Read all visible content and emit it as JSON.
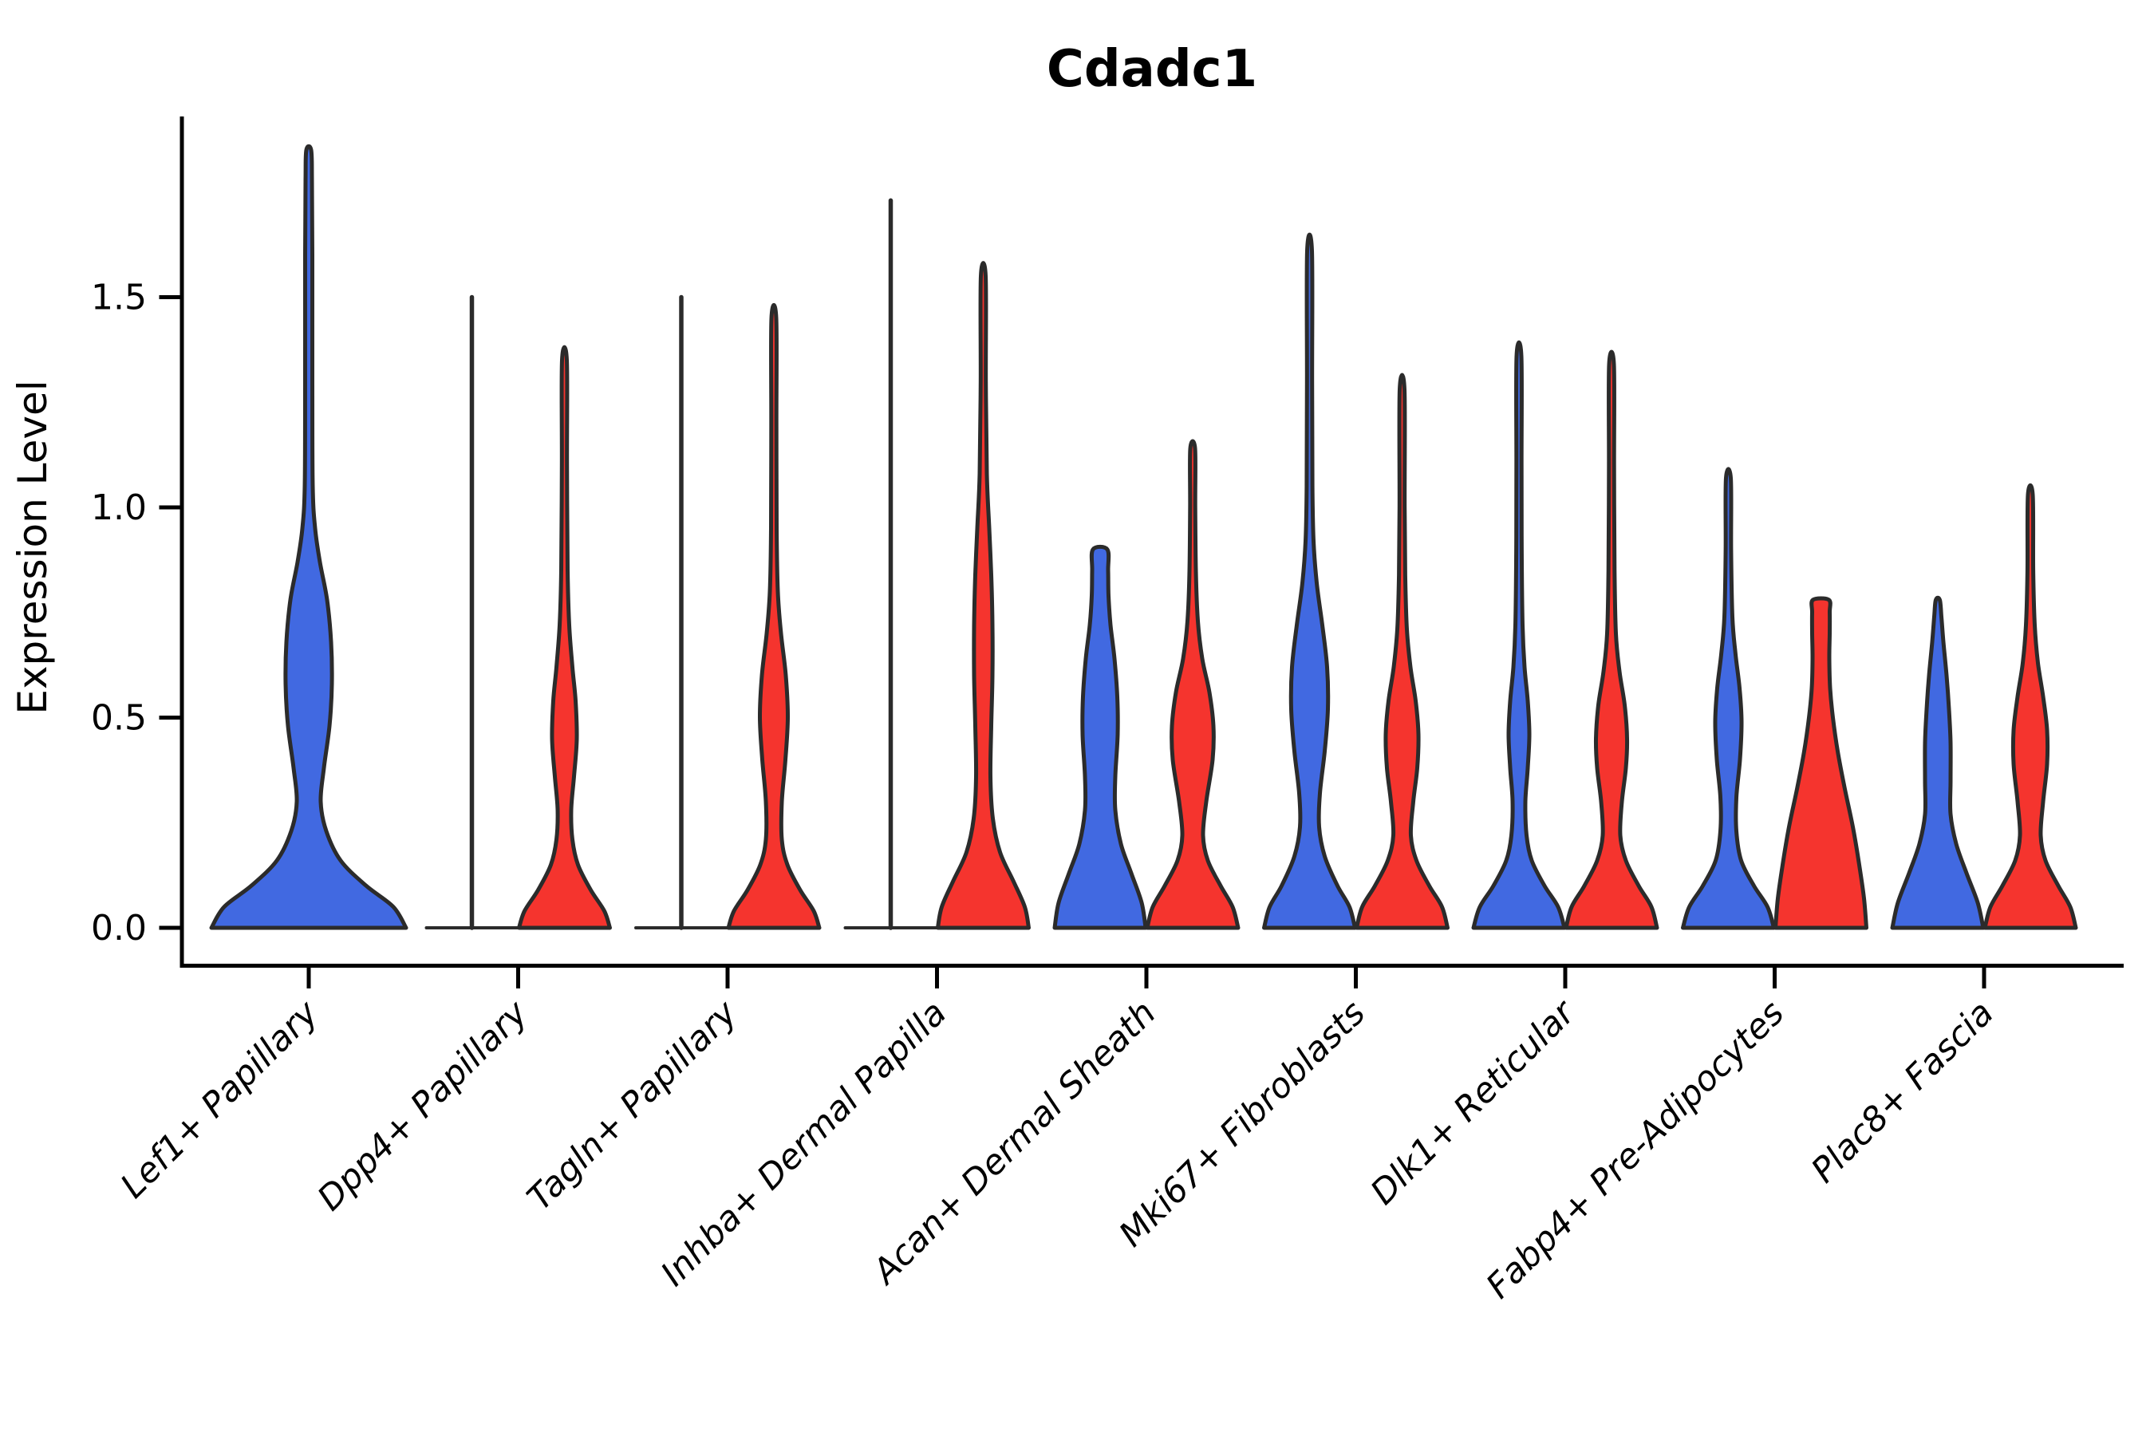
{
  "chart_data": {
    "type": "violin",
    "title": "Cdadc1",
    "ylabel": "Expression Level",
    "xlabel": "",
    "ylim": [
      -0.09,
      1.93
    ],
    "grid": false,
    "legend": "none",
    "yticks": [
      {
        "value": 0.0,
        "label": "0.0"
      },
      {
        "value": 0.5,
        "label": "0.5"
      },
      {
        "value": 1.0,
        "label": "1.0"
      },
      {
        "value": 1.5,
        "label": "1.5"
      }
    ],
    "categories": [
      "Lef1+ Papillary",
      "Dpp4+ Papillary",
      "Tagln+ Papillary",
      "Inhba+ Dermal Papilla",
      "Acan+ Dermal Sheath",
      "Mki67+ Fibroblasts",
      "Dlk1+ Reticular",
      "Fabp4+ Pre-Adipocytes",
      "Plac8+ Fascia"
    ],
    "groups": [
      {
        "id": "blue",
        "color": "#4169E1"
      },
      {
        "id": "red",
        "color": "#F5342E"
      }
    ],
    "outline_color": "#2B2B2B",
    "violins": [
      {
        "category": 0,
        "group": "blue",
        "side": "center",
        "kind": "violin",
        "top": 1.85,
        "max_halfwidth": 122,
        "profile": [
          [
            0,
            122
          ],
          [
            0.05,
            106
          ],
          [
            0.1,
            72
          ],
          [
            0.16,
            40
          ],
          [
            0.23,
            22
          ],
          [
            0.3,
            15
          ],
          [
            0.38,
            19
          ],
          [
            0.48,
            26
          ],
          [
            0.58,
            29
          ],
          [
            0.68,
            28
          ],
          [
            0.78,
            23
          ],
          [
            0.87,
            14
          ],
          [
            0.95,
            8
          ],
          [
            1.05,
            5
          ],
          [
            1.3,
            4.5
          ],
          [
            1.6,
            4.5
          ],
          [
            1.78,
            4
          ],
          [
            1.85,
            3
          ]
        ]
      },
      {
        "category": 1,
        "group": "blue",
        "side": "left",
        "kind": "line",
        "top": 1.5
      },
      {
        "category": 1,
        "group": "red",
        "side": "right",
        "kind": "violin",
        "top": 1.35,
        "max_halfwidth": 57,
        "profile": [
          [
            0,
            57
          ],
          [
            0.04,
            50
          ],
          [
            0.09,
            33
          ],
          [
            0.15,
            17
          ],
          [
            0.21,
            10
          ],
          [
            0.28,
            8.5
          ],
          [
            0.36,
            12
          ],
          [
            0.45,
            15.5
          ],
          [
            0.54,
            14
          ],
          [
            0.62,
            10
          ],
          [
            0.72,
            6
          ],
          [
            0.85,
            4
          ],
          [
            1.1,
            3.2
          ],
          [
            1.35,
            3
          ]
        ]
      },
      {
        "category": 2,
        "group": "blue",
        "side": "left",
        "kind": "line",
        "top": 1.5
      },
      {
        "category": 2,
        "group": "red",
        "side": "right",
        "kind": "violin",
        "top": 1.45,
        "max_halfwidth": 57,
        "profile": [
          [
            0,
            57
          ],
          [
            0.04,
            50
          ],
          [
            0.09,
            33
          ],
          [
            0.15,
            17
          ],
          [
            0.21,
            10
          ],
          [
            0.3,
            10
          ],
          [
            0.4,
            14.5
          ],
          [
            0.5,
            17.5
          ],
          [
            0.6,
            15
          ],
          [
            0.7,
            9
          ],
          [
            0.8,
            5
          ],
          [
            0.95,
            3.5
          ],
          [
            1.2,
            3.2
          ],
          [
            1.45,
            3
          ]
        ]
      },
      {
        "category": 3,
        "group": "blue",
        "side": "left",
        "kind": "line",
        "top": 1.73
      },
      {
        "category": 3,
        "group": "red",
        "side": "right",
        "kind": "violin",
        "top": 1.55,
        "max_halfwidth": 57,
        "profile": [
          [
            0,
            57
          ],
          [
            0.05,
            52
          ],
          [
            0.11,
            38
          ],
          [
            0.18,
            21
          ],
          [
            0.26,
            12
          ],
          [
            0.36,
            9
          ],
          [
            0.48,
            10
          ],
          [
            0.6,
            11.5
          ],
          [
            0.72,
            11.5
          ],
          [
            0.84,
            10
          ],
          [
            0.95,
            7.5
          ],
          [
            1.08,
            4.5
          ],
          [
            1.3,
            3.2
          ],
          [
            1.55,
            3
          ]
        ]
      },
      {
        "category": 4,
        "group": "blue",
        "side": "left",
        "kind": "violin",
        "top": 0.9,
        "max_halfwidth": 57,
        "profile": [
          [
            0,
            57
          ],
          [
            0.06,
            52
          ],
          [
            0.13,
            39
          ],
          [
            0.2,
            26
          ],
          [
            0.28,
            19
          ],
          [
            0.36,
            19
          ],
          [
            0.46,
            22
          ],
          [
            0.55,
            21.5
          ],
          [
            0.64,
            18
          ],
          [
            0.72,
            13
          ],
          [
            0.79,
            10.5
          ],
          [
            0.85,
            10
          ],
          [
            0.9,
            9
          ]
        ]
      },
      {
        "category": 4,
        "group": "red",
        "side": "right",
        "kind": "violin",
        "top": 1.14,
        "max_halfwidth": 57,
        "profile": [
          [
            0,
            57
          ],
          [
            0.05,
            50
          ],
          [
            0.1,
            35
          ],
          [
            0.16,
            19
          ],
          [
            0.22,
            13
          ],
          [
            0.3,
            17
          ],
          [
            0.4,
            25
          ],
          [
            0.48,
            26
          ],
          [
            0.56,
            21
          ],
          [
            0.64,
            12
          ],
          [
            0.73,
            6.5
          ],
          [
            0.85,
            4
          ],
          [
            1.0,
            3.2
          ],
          [
            1.14,
            3
          ]
        ]
      },
      {
        "category": 5,
        "group": "blue",
        "side": "left",
        "kind": "violin",
        "top": 1.61,
        "max_halfwidth": 57,
        "profile": [
          [
            0,
            57
          ],
          [
            0.05,
            50
          ],
          [
            0.1,
            35
          ],
          [
            0.17,
            19
          ],
          [
            0.24,
            12
          ],
          [
            0.32,
            13
          ],
          [
            0.42,
            19
          ],
          [
            0.52,
            23
          ],
          [
            0.62,
            22
          ],
          [
            0.72,
            16
          ],
          [
            0.82,
            9
          ],
          [
            0.92,
            5
          ],
          [
            1.05,
            3.6
          ],
          [
            1.3,
            3.2
          ],
          [
            1.61,
            3
          ]
        ]
      },
      {
        "category": 5,
        "group": "red",
        "side": "right",
        "kind": "violin",
        "top": 1.28,
        "max_halfwidth": 57,
        "profile": [
          [
            0,
            57
          ],
          [
            0.05,
            50
          ],
          [
            0.1,
            34
          ],
          [
            0.16,
            18
          ],
          [
            0.22,
            11
          ],
          [
            0.3,
            14
          ],
          [
            0.38,
            19
          ],
          [
            0.46,
            20.5
          ],
          [
            0.54,
            17
          ],
          [
            0.62,
            10.5
          ],
          [
            0.71,
            6
          ],
          [
            0.83,
            4
          ],
          [
            1.0,
            3.2
          ],
          [
            1.28,
            3
          ]
        ]
      },
      {
        "category": 6,
        "group": "blue",
        "side": "left",
        "kind": "violin",
        "top": 1.36,
        "max_halfwidth": 57,
        "profile": [
          [
            0,
            57
          ],
          [
            0.05,
            49
          ],
          [
            0.1,
            32
          ],
          [
            0.16,
            16
          ],
          [
            0.22,
            9.5
          ],
          [
            0.3,
            8
          ],
          [
            0.38,
            11
          ],
          [
            0.46,
            13
          ],
          [
            0.54,
            11
          ],
          [
            0.62,
            7
          ],
          [
            0.72,
            4.5
          ],
          [
            0.9,
            3.4
          ],
          [
            1.1,
            3.2
          ],
          [
            1.36,
            3
          ]
        ]
      },
      {
        "category": 6,
        "group": "red",
        "side": "right",
        "kind": "violin",
        "top": 1.34,
        "max_halfwidth": 57,
        "profile": [
          [
            0,
            57
          ],
          [
            0.05,
            50
          ],
          [
            0.1,
            34
          ],
          [
            0.16,
            18
          ],
          [
            0.22,
            11
          ],
          [
            0.3,
            13
          ],
          [
            0.38,
            18
          ],
          [
            0.45,
            19.5
          ],
          [
            0.53,
            16.5
          ],
          [
            0.61,
            10
          ],
          [
            0.7,
            5.5
          ],
          [
            0.85,
            3.8
          ],
          [
            1.1,
            3.2
          ],
          [
            1.34,
            3
          ]
        ]
      },
      {
        "category": 7,
        "group": "blue",
        "side": "left",
        "kind": "violin",
        "top": 1.07,
        "max_halfwidth": 57,
        "profile": [
          [
            0,
            57
          ],
          [
            0.05,
            49
          ],
          [
            0.1,
            32
          ],
          [
            0.16,
            16
          ],
          [
            0.23,
            10
          ],
          [
            0.31,
            10
          ],
          [
            0.4,
            14.5
          ],
          [
            0.49,
            16.5
          ],
          [
            0.57,
            14
          ],
          [
            0.65,
            9
          ],
          [
            0.74,
            5
          ],
          [
            0.9,
            3.4
          ],
          [
            1.07,
            3
          ]
        ]
      },
      {
        "category": 7,
        "group": "red",
        "side": "right",
        "kind": "violin",
        "top": 0.78,
        "max_halfwidth": 57,
        "profile": [
          [
            0,
            57
          ],
          [
            0.07,
            54
          ],
          [
            0.15,
            48
          ],
          [
            0.24,
            40
          ],
          [
            0.33,
            30
          ],
          [
            0.42,
            21
          ],
          [
            0.5,
            15
          ],
          [
            0.57,
            11.5
          ],
          [
            0.64,
            10.5
          ],
          [
            0.7,
            11
          ],
          [
            0.75,
            11
          ],
          [
            0.78,
            10
          ]
        ]
      },
      {
        "category": 8,
        "group": "blue",
        "side": "left",
        "kind": "violin",
        "top": 0.78,
        "max_halfwidth": 57,
        "profile": [
          [
            0,
            57
          ],
          [
            0.06,
            50
          ],
          [
            0.13,
            36
          ],
          [
            0.2,
            23
          ],
          [
            0.27,
            16
          ],
          [
            0.35,
            16
          ],
          [
            0.44,
            16
          ],
          [
            0.52,
            14
          ],
          [
            0.6,
            11
          ],
          [
            0.68,
            7
          ],
          [
            0.74,
            4.5
          ],
          [
            0.78,
            2.5
          ]
        ]
      },
      {
        "category": 8,
        "group": "red",
        "side": "right",
        "kind": "violin",
        "top": 1.03,
        "max_halfwidth": 57,
        "profile": [
          [
            0,
            57
          ],
          [
            0.05,
            50
          ],
          [
            0.1,
            35
          ],
          [
            0.16,
            19
          ],
          [
            0.22,
            13
          ],
          [
            0.3,
            16
          ],
          [
            0.39,
            21
          ],
          [
            0.47,
            21
          ],
          [
            0.55,
            16
          ],
          [
            0.63,
            9.5
          ],
          [
            0.72,
            5.5
          ],
          [
            0.85,
            3.6
          ],
          [
            1.03,
            3
          ]
        ]
      }
    ]
  }
}
